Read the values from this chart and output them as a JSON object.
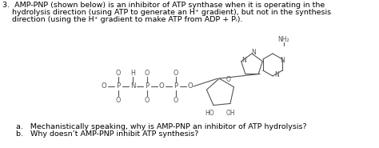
{
  "background_color": "#ffffff",
  "fig_width": 4.74,
  "fig_height": 1.85,
  "dpi": 100,
  "line1": "3.  AMP-PNP (shown below) is an inhibitor of ATP synthase when it is operating in the",
  "line2": "    hydrolysis direction (using ATP to generate an H⁺ gradient), but not in the synthesis",
  "line3": "    direction (using the H⁺ gradient to make ATP from ADP + Pᵢ).",
  "sub1": "a.   Mechanistically speaking, why is AMP-PNP an inhibitor of ATP hydrolysis?",
  "sub2": "b.   Why doesn’t AMP-PNP inhibit ATP synthesis?",
  "font_size": 6.8,
  "text_color": "#000000",
  "struct_color": "#555555"
}
